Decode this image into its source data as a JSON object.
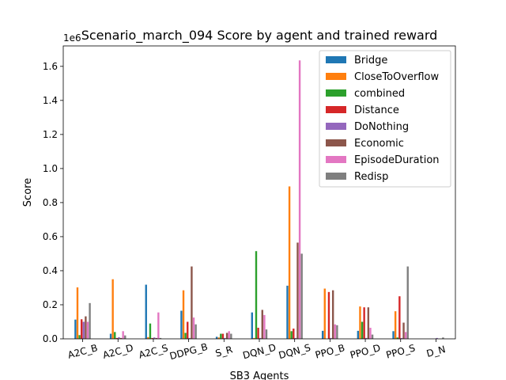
{
  "chart_data": {
    "type": "bar",
    "title": "Scenario_march_094 Score by agent and trained reward",
    "xlabel": "SB3 Agents",
    "ylabel": "Score",
    "offset_label": "1e6",
    "ylim": [
      0,
      1720000
    ],
    "y_ticks": [
      0,
      200000,
      400000,
      600000,
      800000,
      1000000,
      1200000,
      1400000,
      1600000
    ],
    "y_tick_labels": [
      "0.0",
      "0.2",
      "0.4",
      "0.6",
      "0.8",
      "1.0",
      "1.2",
      "1.4",
      "1.6"
    ],
    "legend_position": "top-right",
    "grid": false,
    "categories": [
      "A2C_B",
      "A2C_D",
      "A2C_S",
      "DDPG_B",
      "S_R",
      "DQN_D",
      "DQN_S",
      "PPO_B",
      "PPO_D",
      "PPO_S",
      "D_N"
    ],
    "series": [
      {
        "name": "Bridge",
        "color": "#1f77b4",
        "values": [
          113000,
          30000,
          318000,
          165000,
          12000,
          155000,
          312000,
          47000,
          47000,
          45000,
          0
        ]
      },
      {
        "name": "CloseToOverflow",
        "color": "#ff7f0e",
        "values": [
          302000,
          350000,
          10000,
          285000,
          8000,
          5000,
          895000,
          295000,
          190000,
          162000,
          0
        ]
      },
      {
        "name": "combined",
        "color": "#2ca02c",
        "values": [
          22000,
          40000,
          90000,
          35000,
          30000,
          515000,
          45000,
          0,
          100000,
          8000,
          0
        ]
      },
      {
        "name": "Distance",
        "color": "#d62728",
        "values": [
          115000,
          5000,
          5000,
          100000,
          30000,
          65000,
          60000,
          275000,
          185000,
          250000,
          0
        ]
      },
      {
        "name": "DoNothing",
        "color": "#9467bd",
        "values": [
          100000,
          10000,
          8000,
          5000,
          5000,
          5000,
          5000,
          5000,
          5000,
          5000,
          5000
        ]
      },
      {
        "name": "Economic",
        "color": "#8c564b",
        "values": [
          132000,
          5000,
          5000,
          425000,
          35000,
          170000,
          565000,
          285000,
          185000,
          95000,
          0
        ]
      },
      {
        "name": "EpisodeDuration",
        "color": "#e377c2",
        "values": [
          100000,
          45000,
          155000,
          125000,
          45000,
          140000,
          1635000,
          85000,
          65000,
          40000,
          0
        ]
      },
      {
        "name": "Redisp",
        "color": "#7f7f7f",
        "values": [
          210000,
          20000,
          5000,
          85000,
          30000,
          55000,
          500000,
          80000,
          25000,
          425000,
          8000
        ]
      }
    ]
  }
}
